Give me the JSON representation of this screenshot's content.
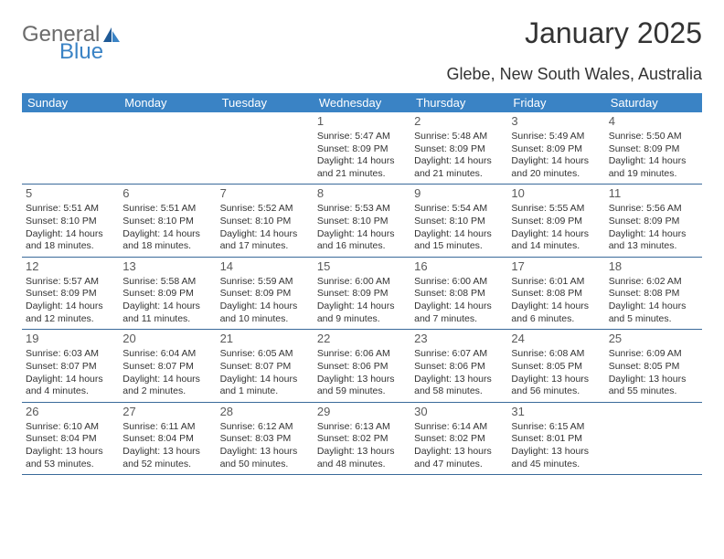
{
  "logo": {
    "text_general": "General",
    "text_blue": "Blue"
  },
  "title": "January 2025",
  "subtitle": "Glebe, New South Wales, Australia",
  "colors": {
    "header_bg": "#3a83c5",
    "header_text": "#ffffff",
    "row_border": "#3a6a9a",
    "body_text": "#333333",
    "logo_gray": "#6b6b6b",
    "logo_blue": "#3a83c5"
  },
  "day_names": [
    "Sunday",
    "Monday",
    "Tuesday",
    "Wednesday",
    "Thursday",
    "Friday",
    "Saturday"
  ],
  "weeks": [
    [
      {
        "num": "",
        "sr": "",
        "ss": "",
        "dl": ""
      },
      {
        "num": "",
        "sr": "",
        "ss": "",
        "dl": ""
      },
      {
        "num": "",
        "sr": "",
        "ss": "",
        "dl": ""
      },
      {
        "num": "1",
        "sr": "Sunrise: 5:47 AM",
        "ss": "Sunset: 8:09 PM",
        "dl": "Daylight: 14 hours and 21 minutes."
      },
      {
        "num": "2",
        "sr": "Sunrise: 5:48 AM",
        "ss": "Sunset: 8:09 PM",
        "dl": "Daylight: 14 hours and 21 minutes."
      },
      {
        "num": "3",
        "sr": "Sunrise: 5:49 AM",
        "ss": "Sunset: 8:09 PM",
        "dl": "Daylight: 14 hours and 20 minutes."
      },
      {
        "num": "4",
        "sr": "Sunrise: 5:50 AM",
        "ss": "Sunset: 8:09 PM",
        "dl": "Daylight: 14 hours and 19 minutes."
      }
    ],
    [
      {
        "num": "5",
        "sr": "Sunrise: 5:51 AM",
        "ss": "Sunset: 8:10 PM",
        "dl": "Daylight: 14 hours and 18 minutes."
      },
      {
        "num": "6",
        "sr": "Sunrise: 5:51 AM",
        "ss": "Sunset: 8:10 PM",
        "dl": "Daylight: 14 hours and 18 minutes."
      },
      {
        "num": "7",
        "sr": "Sunrise: 5:52 AM",
        "ss": "Sunset: 8:10 PM",
        "dl": "Daylight: 14 hours and 17 minutes."
      },
      {
        "num": "8",
        "sr": "Sunrise: 5:53 AM",
        "ss": "Sunset: 8:10 PM",
        "dl": "Daylight: 14 hours and 16 minutes."
      },
      {
        "num": "9",
        "sr": "Sunrise: 5:54 AM",
        "ss": "Sunset: 8:10 PM",
        "dl": "Daylight: 14 hours and 15 minutes."
      },
      {
        "num": "10",
        "sr": "Sunrise: 5:55 AM",
        "ss": "Sunset: 8:09 PM",
        "dl": "Daylight: 14 hours and 14 minutes."
      },
      {
        "num": "11",
        "sr": "Sunrise: 5:56 AM",
        "ss": "Sunset: 8:09 PM",
        "dl": "Daylight: 14 hours and 13 minutes."
      }
    ],
    [
      {
        "num": "12",
        "sr": "Sunrise: 5:57 AM",
        "ss": "Sunset: 8:09 PM",
        "dl": "Daylight: 14 hours and 12 minutes."
      },
      {
        "num": "13",
        "sr": "Sunrise: 5:58 AM",
        "ss": "Sunset: 8:09 PM",
        "dl": "Daylight: 14 hours and 11 minutes."
      },
      {
        "num": "14",
        "sr": "Sunrise: 5:59 AM",
        "ss": "Sunset: 8:09 PM",
        "dl": "Daylight: 14 hours and 10 minutes."
      },
      {
        "num": "15",
        "sr": "Sunrise: 6:00 AM",
        "ss": "Sunset: 8:09 PM",
        "dl": "Daylight: 14 hours and 9 minutes."
      },
      {
        "num": "16",
        "sr": "Sunrise: 6:00 AM",
        "ss": "Sunset: 8:08 PM",
        "dl": "Daylight: 14 hours and 7 minutes."
      },
      {
        "num": "17",
        "sr": "Sunrise: 6:01 AM",
        "ss": "Sunset: 8:08 PM",
        "dl": "Daylight: 14 hours and 6 minutes."
      },
      {
        "num": "18",
        "sr": "Sunrise: 6:02 AM",
        "ss": "Sunset: 8:08 PM",
        "dl": "Daylight: 14 hours and 5 minutes."
      }
    ],
    [
      {
        "num": "19",
        "sr": "Sunrise: 6:03 AM",
        "ss": "Sunset: 8:07 PM",
        "dl": "Daylight: 14 hours and 4 minutes."
      },
      {
        "num": "20",
        "sr": "Sunrise: 6:04 AM",
        "ss": "Sunset: 8:07 PM",
        "dl": "Daylight: 14 hours and 2 minutes."
      },
      {
        "num": "21",
        "sr": "Sunrise: 6:05 AM",
        "ss": "Sunset: 8:07 PM",
        "dl": "Daylight: 14 hours and 1 minute."
      },
      {
        "num": "22",
        "sr": "Sunrise: 6:06 AM",
        "ss": "Sunset: 8:06 PM",
        "dl": "Daylight: 13 hours and 59 minutes."
      },
      {
        "num": "23",
        "sr": "Sunrise: 6:07 AM",
        "ss": "Sunset: 8:06 PM",
        "dl": "Daylight: 13 hours and 58 minutes."
      },
      {
        "num": "24",
        "sr": "Sunrise: 6:08 AM",
        "ss": "Sunset: 8:05 PM",
        "dl": "Daylight: 13 hours and 56 minutes."
      },
      {
        "num": "25",
        "sr": "Sunrise: 6:09 AM",
        "ss": "Sunset: 8:05 PM",
        "dl": "Daylight: 13 hours and 55 minutes."
      }
    ],
    [
      {
        "num": "26",
        "sr": "Sunrise: 6:10 AM",
        "ss": "Sunset: 8:04 PM",
        "dl": "Daylight: 13 hours and 53 minutes."
      },
      {
        "num": "27",
        "sr": "Sunrise: 6:11 AM",
        "ss": "Sunset: 8:04 PM",
        "dl": "Daylight: 13 hours and 52 minutes."
      },
      {
        "num": "28",
        "sr": "Sunrise: 6:12 AM",
        "ss": "Sunset: 8:03 PM",
        "dl": "Daylight: 13 hours and 50 minutes."
      },
      {
        "num": "29",
        "sr": "Sunrise: 6:13 AM",
        "ss": "Sunset: 8:02 PM",
        "dl": "Daylight: 13 hours and 48 minutes."
      },
      {
        "num": "30",
        "sr": "Sunrise: 6:14 AM",
        "ss": "Sunset: 8:02 PM",
        "dl": "Daylight: 13 hours and 47 minutes."
      },
      {
        "num": "31",
        "sr": "Sunrise: 6:15 AM",
        "ss": "Sunset: 8:01 PM",
        "dl": "Daylight: 13 hours and 45 minutes."
      },
      {
        "num": "",
        "sr": "",
        "ss": "",
        "dl": ""
      }
    ]
  ]
}
